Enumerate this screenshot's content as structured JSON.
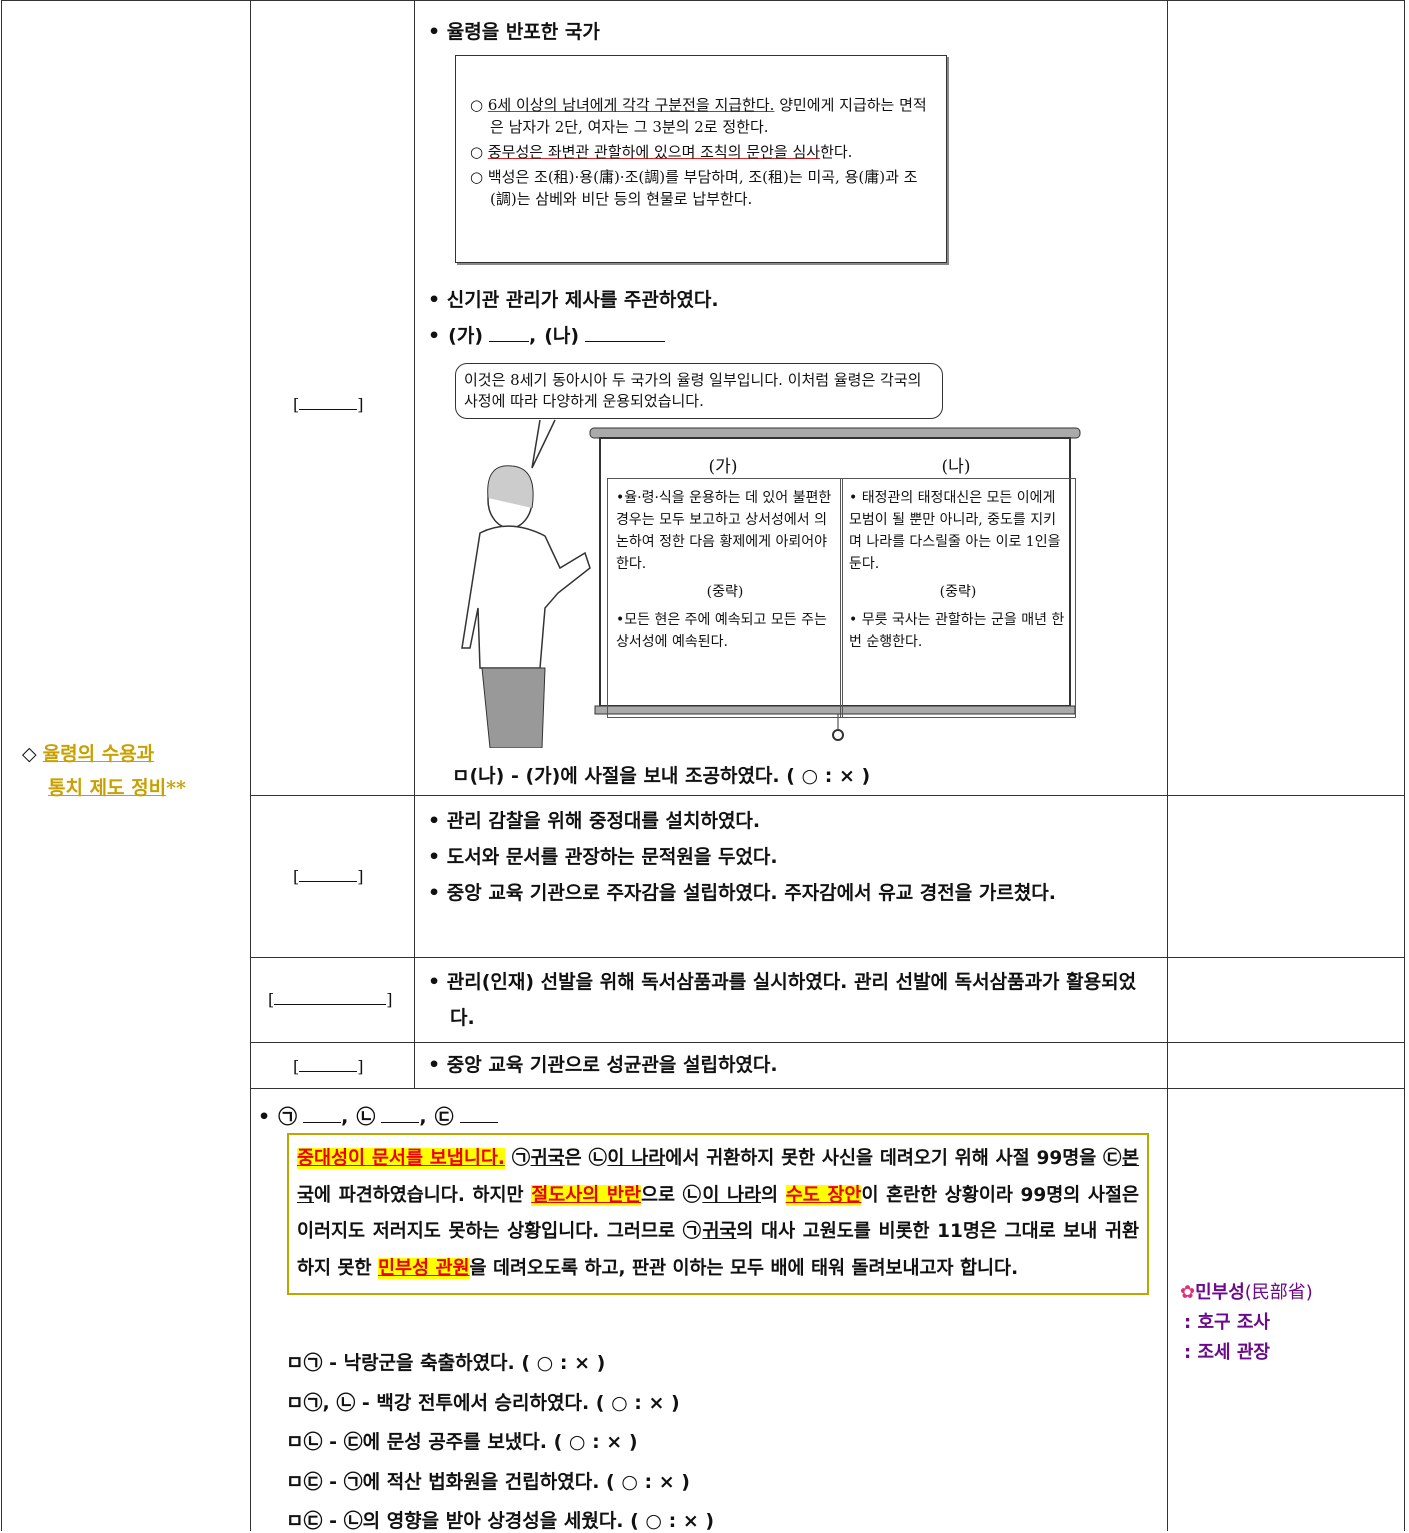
{
  "section": {
    "symbol": "◇",
    "title_lines": [
      "율령의 수용과",
      "통치 제도 정비"
    ],
    "stars": "**"
  },
  "rows": [
    {
      "bracket": [
        "[",
        "]"
      ],
      "bullet1": "• 율령을 반포한 국가",
      "source": [
        [
          {
            "text": "○ "
          },
          {
            "text": "6세 이상의 남녀에게 각각 구분전을 지급한다.",
            "style": "red-u"
          },
          {
            "text": " 양민에게 지급하는 면적은 남자가 2단, 여자는 그 3분의 2로 정한다."
          }
        ],
        [
          {
            "text": "○ "
          },
          {
            "text": "중무성은 좌변관 관할하에 있으며 조칙의 문안을 심사",
            "style": "red-u"
          },
          {
            "text": "한다."
          }
        ],
        [
          {
            "text": "○ 백성은 조(租)·용(庸)·조(調)를 부담하며, 조(租)는 미곡, 용(庸)과 조(調)는 삼베와 비단 등의 현물로 납부한다."
          }
        ]
      ],
      "bullet2": "• 신기관 관리가 제사를 주관하였다.",
      "blank_line": {
        "lead": "•",
        "items": [
          "(가)",
          "(나)"
        ],
        "sep": ","
      },
      "bubble": "이것은 8세기 동아시아 두 국가의 율령 일부입니다. 이처럼 율령은 각국의 사정에 따라 다양하게 운용되었습니다.",
      "screen": [
        {
          "heading": "(가)",
          "items": [
            "•율·령·식을 운용하는 데 있어 불편한 경우는 모두 보고하고 상서성에서 의논하여 정한 다음 황제에게 아뢰어야 한다.",
            "(중략)",
            "•모든 현은 주에 예속되고 모든 주는 상서성에 예속된다."
          ]
        },
        {
          "heading": "(나)",
          "items": [
            "• 태정관의 태정대신은 모든 이에게 모범이 될 뿐만 아니라, 중도를 지키며 나라를 다스릴줄 아는 이로 1인을 둔다.",
            "(중략)",
            "• 무릇 국사는 관할하는 군을 매년 한 번 순행한다."
          ]
        }
      ],
      "quiz": "ㅁ(나) - (가)에 사절을 보내 조공하였다. ( ○ : × )"
    },
    {
      "bracket": [
        "[",
        "]"
      ],
      "bullets": [
        "• 관리 감찰을 위해 중정대를 설치하였다.",
        "• 도서와 문서를 관장하는 문적원을 두었다.",
        "• 중앙 교육 기관으로 주자감을 설립하였다. 주자감에서 유교 경전을 가르쳤다."
      ]
    },
    {
      "bracket": [
        "[",
        "]"
      ],
      "bullets": [
        "• 관리(인재) 선발을 위해 독서삼품과를 실시하였다. 관리 선발에 독서삼품과가 활용되었다."
      ]
    },
    {
      "bracket": [
        "[",
        "]"
      ],
      "bullets": [
        "• 중앙 교육 기관으로 성균관을 설립하였다."
      ]
    },
    {
      "blank_line": {
        "lead": "•",
        "items": [
          "㉠",
          "㉡",
          "㉢"
        ],
        "sep": ","
      },
      "passage": [
        {
          "text": "중대성이 문서를 보냅니다.",
          "style": "hl"
        },
        {
          "text": " ㉠"
        },
        {
          "text": "귀국",
          "style": "u"
        },
        {
          "text": "은 ㉡"
        },
        {
          "text": "이 나라",
          "style": "u"
        },
        {
          "text": "에서 귀환하지 못한 사신을 데려오기 위해 사절 99명을 ㉢"
        },
        {
          "text": "본국",
          "style": "u"
        },
        {
          "text": "에 파견하였습니다. 하지만 "
        },
        {
          "text": "절도사의 반란",
          "style": "hl"
        },
        {
          "text": "으로 ㉡"
        },
        {
          "text": "이 나라",
          "style": "u"
        },
        {
          "text": "의 "
        },
        {
          "text": "수도 장안",
          "style": "hl"
        },
        {
          "text": "이 혼란한 상황이라 99명의 사절은 이러지도 저러지도 못하는 상황입니다. 그러므로 ㉠"
        },
        {
          "text": "귀국",
          "style": "u"
        },
        {
          "text": "의 대사 고원도를 비롯한 11명은 그대로 보내 귀환하지 못한 "
        },
        {
          "text": "민부성 관원",
          "style": "hl"
        },
        {
          "text": "을 데려오도록 하고, 판관 이하는 모두 배에 태워 돌려보내고자 합니다."
        }
      ],
      "quizzes": [
        "ㅁ㉠ - 낙랑군을 축출하였다. ( ○ : × )",
        "ㅁ㉠, ㉡ - 백강 전투에서 승리하였다. ( ○ : × )",
        "ㅁ㉡ - ㉢에 문성 공주를 보냈다. ( ○ : × )",
        "ㅁ㉢ - ㉠에 적산 법화원을 건립하였다. ( ○ : × )",
        "ㅁ㉢ - ㉡의 영향을 받아 상경성을 세웠다. ( ○ : × )"
      ],
      "note": {
        "icon": "✿",
        "name": "민부성",
        "hanja": "(民部省)",
        "lines": [
          ": 호구 조사",
          ": 조세 관장"
        ]
      }
    }
  ]
}
